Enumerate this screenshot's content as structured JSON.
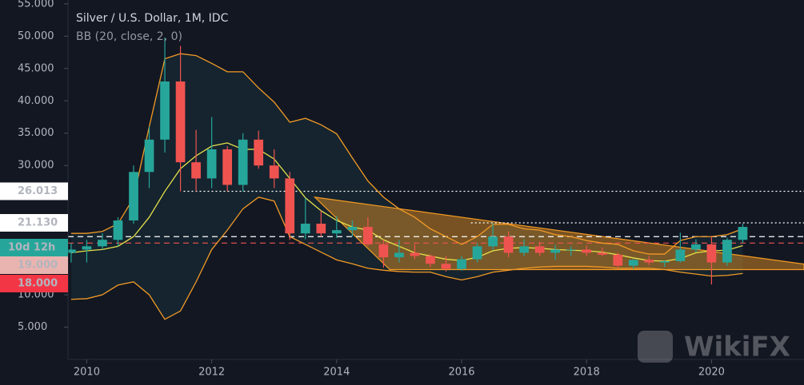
{
  "chart_data": {
    "type": "candlestick",
    "title": "Silver / U.S. Dollar, 1M, IDC",
    "subtitle": "BB (20, close, 2, 0)",
    "watermark": "WikiFX",
    "x": [
      2009.75,
      2010.0,
      2010.25,
      2010.5,
      2010.75,
      2011.0,
      2011.25,
      2011.5,
      2011.75,
      2012.0,
      2012.25,
      2012.5,
      2012.75,
      2013.0,
      2013.25,
      2013.5,
      2013.75,
      2014.0,
      2014.25,
      2014.5,
      2014.75,
      2015.0,
      2015.25,
      2015.5,
      2015.75,
      2016.0,
      2016.25,
      2016.5,
      2016.75,
      2017.0,
      2017.25,
      2017.5,
      2017.75,
      2018.0,
      2018.25,
      2018.5,
      2018.75,
      2019.0,
      2019.25,
      2019.5,
      2019.75,
      2020.0,
      2020.25,
      2020.5
    ],
    "open": [
      16.5,
      17,
      17.5,
      18.5,
      21.5,
      29,
      34,
      43,
      30.5,
      28,
      32.5,
      27,
      34,
      30,
      28,
      19.5,
      21,
      19.5,
      20,
      20.5,
      17.8,
      15.8,
      16.5,
      16,
      14.8,
      14,
      15.5,
      17.5,
      19,
      16.5,
      17.5,
      16.5,
      17,
      17,
      16.5,
      16.2,
      14.5,
      15.4,
      15,
      15.2,
      17,
      17.8,
      15,
      18.5
    ],
    "high": [
      18,
      18.5,
      19.5,
      22,
      30,
      36,
      49.8,
      48.5,
      35.5,
      37.5,
      33,
      35,
      35.4,
      32.5,
      29,
      25,
      23,
      22.2,
      21.5,
      22,
      18.5,
      18.5,
      17.8,
      16.3,
      16,
      16,
      18,
      21.1,
      19.8,
      18.6,
      18.2,
      17.7,
      17.5,
      17.6,
      17.3,
      16.5,
      15.5,
      16,
      15.3,
      19.6,
      18.6,
      19,
      18.8,
      21
    ],
    "low": [
      15,
      15,
      17,
      17.5,
      21,
      26.5,
      32,
      26,
      26,
      26.5,
      26,
      26,
      29.5,
      26.5,
      18.5,
      18.6,
      19,
      18.8,
      19,
      17.5,
      14.2,
      15,
      15.5,
      14.3,
      13.6,
      13.7,
      15,
      17,
      15.8,
      16,
      16,
      15.4,
      16,
      16,
      16,
      14,
      14,
      14.6,
      14.3,
      15,
      16.6,
      11.6,
      14.5,
      18
    ],
    "close": [
      17,
      17.5,
      18.5,
      21.5,
      29,
      34,
      43,
      30.5,
      28,
      32.5,
      27,
      34,
      30,
      28,
      19.5,
      21,
      19.5,
      20,
      20.5,
      17.8,
      15.8,
      16.5,
      16,
      14.8,
      14,
      15.5,
      17.5,
      19,
      16.5,
      17.5,
      16.5,
      17,
      17,
      16.5,
      16.2,
      14.5,
      15.4,
      15,
      15.2,
      17,
      17.8,
      15,
      18.5,
      20.5
    ],
    "up_color": "#26a69a",
    "down_color": "#ef5350",
    "bands": {
      "upper": [
        19.5,
        19.5,
        19.8,
        21,
        25,
        36,
        46.5,
        47.3,
        47,
        45.8,
        44.5,
        44.5,
        42,
        39.8,
        36.7,
        37.3,
        36.3,
        34.9,
        31.2,
        27.6,
        25.1,
        23.3,
        22,
        20.2,
        19,
        17.8,
        19,
        20.9,
        20.9,
        20.2,
        20,
        19.3,
        19,
        18.4,
        18,
        17.8,
        16.8,
        16.3,
        16.3,
        18.4,
        19,
        19,
        19.3,
        20.2
      ],
      "middle": [
        16.5,
        16.8,
        17,
        17.5,
        19,
        22,
        26,
        29.5,
        31.5,
        33,
        33.5,
        32.5,
        32.5,
        31,
        28,
        25,
        23,
        21.5,
        20.5,
        20,
        18.5,
        17.5,
        16.5,
        16,
        15.5,
        15.3,
        15.8,
        16.8,
        17.2,
        17.3,
        17.2,
        17,
        16.9,
        16.8,
        16.6,
        16.2,
        15.7,
        15.3,
        15.2,
        15.6,
        16.5,
        16.8,
        16.9,
        17.6
      ],
      "lower": [
        9.3,
        9.4,
        10,
        11.5,
        12,
        10,
        6.2,
        7.5,
        12,
        17,
        20,
        23.3,
        25.1,
        24.5,
        19,
        17.8,
        16.6,
        15.4,
        14.8,
        14.1,
        13.8,
        13.6,
        13.5,
        13.5,
        12.8,
        12.3,
        12.8,
        13.5,
        13.8,
        14.1,
        14.3,
        14.4,
        14.4,
        14.4,
        14.3,
        14.1,
        14.1,
        14.1,
        13.9,
        13.5,
        13.2,
        12.9,
        13,
        13.3
      ],
      "band_color": "#f29a26",
      "middle_color": "#e6e04a",
      "fill_color": "#17303a"
    },
    "triangle": {
      "x": [
        2013.65,
        2014.85,
        2021.48,
        2021.48
      ],
      "y": [
        25.1,
        13.9,
        13.9,
        14.75
      ],
      "color": "#f59b23"
    },
    "price_lines": [
      {
        "value": 26.013,
        "color": "#ffffff",
        "style": "dotted",
        "from": 2011.55
      },
      {
        "value": {
          "value": 21.13,
          "label": "21.130"
        },
        "color": "#ffffff",
        "style": "dotted",
        "from": 2016.15
      },
      {
        "value": {
          "value": 19,
          "label": "19.000"
        },
        "color": "#ffffff",
        "style": "dashed",
        "from": 2009.7,
        "badge_color": "#e9b4b0"
      },
      {
        "value": {
          "value": 18,
          "label": "18.000"
        },
        "color": "#ef5350",
        "style": "dashed",
        "from": 2009.7,
        "badge_color": "#f23645"
      }
    ],
    "countdown": {
      "label": "10d 12h",
      "color": "#26a69a"
    },
    "xlim": [
      2009.7,
      2021.48
    ],
    "ylim": [
      0,
      55.6
    ],
    "xticks": [
      2010,
      2012,
      2014,
      2016,
      2018,
      2020
    ],
    "yticks": [
      {
        "value": 5,
        "label": "5.000"
      },
      {
        "value": 10,
        "label": "10.000"
      },
      {
        "value": 30,
        "label": "30.000"
      },
      {
        "value": 35,
        "label": "35.000"
      },
      {
        "value": 40,
        "label": "40.000"
      },
      {
        "value": 45,
        "label": "45.000"
      },
      {
        "value": 50,
        "label": "50.000"
      },
      {
        "value": 55,
        "label": "55.000"
      }
    ]
  }
}
